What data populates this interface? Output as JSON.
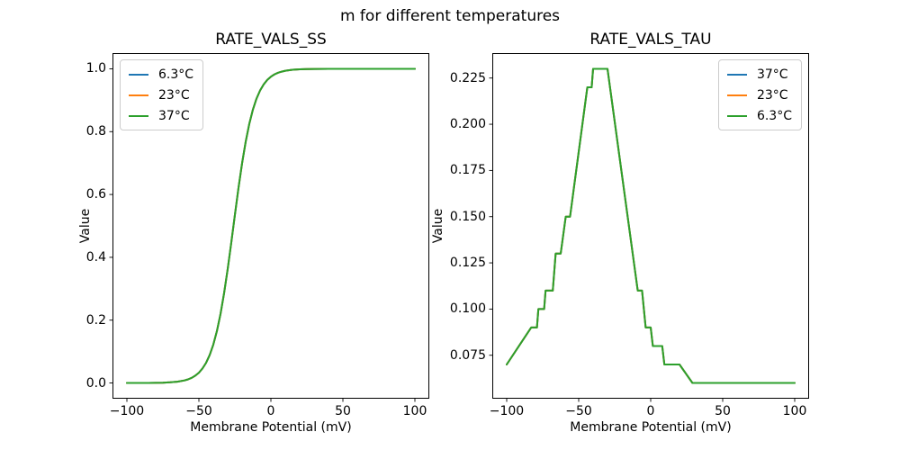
{
  "figure": {
    "suptitle": "m for different temperatures",
    "background": "#ffffff",
    "text_color": "#000000"
  },
  "chart_data": [
    {
      "type": "line",
      "title": "RATE_VALS_SS",
      "xlabel": "Membrane Potential (mV)",
      "ylabel": "Value",
      "grid": false,
      "xlim": [
        -110,
        110
      ],
      "ylim": [
        -0.05,
        1.05
      ],
      "xticks": [
        -100,
        -50,
        0,
        50,
        100
      ],
      "xtick_labels": [
        "−100",
        "−50",
        "0",
        "50",
        "100"
      ],
      "yticks": [
        0.0,
        0.2,
        0.4,
        0.6,
        0.8,
        1.0
      ],
      "ytick_labels": [
        "0.0",
        "0.2",
        "0.4",
        "0.6",
        "0.8",
        "1.0"
      ],
      "legend_position": "upper-left",
      "series": [
        {
          "name": "6.3°C",
          "color": "#1f77b4"
        },
        {
          "name": "23°C",
          "color": "#ff7f0e"
        },
        {
          "name": "37°C",
          "color": "#2ca02c"
        }
      ],
      "series_note": "All three temperature curves are identical sigmoids and overlap exactly; the last-drawn (37°C, green) is the visible one. Steady-state activation ~ 1/(1+exp(-(V+26)/7.1)).",
      "x": [
        -100,
        -95,
        -90,
        -85,
        -80,
        -75,
        -70,
        -65,
        -60,
        -57.5,
        -55,
        -52.5,
        -50,
        -47.5,
        -45,
        -42.5,
        -40,
        -37.5,
        -35,
        -32.5,
        -30,
        -27.5,
        -25,
        -22.5,
        -20,
        -17.5,
        -15,
        -12.5,
        -10,
        -7.5,
        -5,
        -2.5,
        0,
        2.5,
        5,
        7.5,
        10,
        15,
        20,
        25,
        30,
        40,
        50,
        60,
        70,
        80,
        90,
        100
      ],
      "y_shared": [
        0.0,
        0.0001,
        0.0001,
        0.0002,
        0.0005,
        0.001,
        0.002,
        0.0041,
        0.0082,
        0.0117,
        0.0166,
        0.0234,
        0.0329,
        0.0462,
        0.0644,
        0.0892,
        0.1222,
        0.1651,
        0.2195,
        0.2859,
        0.3628,
        0.4474,
        0.5352,
        0.6208,
        0.6996,
        0.768,
        0.8248,
        0.87,
        0.905,
        0.9312,
        0.9507,
        0.9648,
        0.9749,
        0.9823,
        0.9875,
        0.9911,
        0.9938,
        0.9969,
        0.9985,
        0.9992,
        0.9996,
        0.9999,
        1.0,
        1.0,
        1.0,
        1.0,
        1.0,
        1.0
      ]
    },
    {
      "type": "line",
      "title": "RATE_VALS_TAU",
      "xlabel": "Membrane Potential (mV)",
      "ylabel": "Value",
      "grid": false,
      "xlim": [
        -110,
        110
      ],
      "ylim": [
        0.0515,
        0.2385
      ],
      "xticks": [
        -100,
        -50,
        0,
        50,
        100
      ],
      "xtick_labels": [
        "−100",
        "−50",
        "0",
        "50",
        "100"
      ],
      "yticks": [
        0.075,
        0.1,
        0.125,
        0.15,
        0.175,
        0.2,
        0.225
      ],
      "ytick_labels": [
        "0.075",
        "0.100",
        "0.125",
        "0.150",
        "0.175",
        "0.200",
        "0.225"
      ],
      "legend_position": "upper-right",
      "series": [
        {
          "name": "37°C",
          "color": "#1f77b4"
        },
        {
          "name": "23°C",
          "color": "#ff7f0e"
        },
        {
          "name": "6.3°C",
          "color": "#2ca02c"
        }
      ],
      "series_note": "All three temperature curves are identical step-quantized tau curves and overlap exactly; the last-drawn (6.3°C, green) is visible. Peak plateau 0.23 near V=-35 mV; flat 0.06 beyond V=+30 mV.",
      "x": [
        -100,
        -83,
        -79,
        -78,
        -74,
        -73,
        -68,
        -66,
        -62.5,
        -59,
        -56,
        -44,
        -41,
        -40,
        -30,
        -9,
        -6,
        -3.5,
        0,
        1.5,
        8,
        9.5,
        20,
        29,
        100
      ],
      "y_shared": [
        0.07,
        0.09,
        0.09,
        0.1,
        0.1,
        0.11,
        0.11,
        0.13,
        0.13,
        0.15,
        0.15,
        0.22,
        0.22,
        0.23,
        0.23,
        0.11,
        0.11,
        0.09,
        0.09,
        0.08,
        0.08,
        0.07,
        0.07,
        0.06,
        0.06
      ]
    }
  ]
}
